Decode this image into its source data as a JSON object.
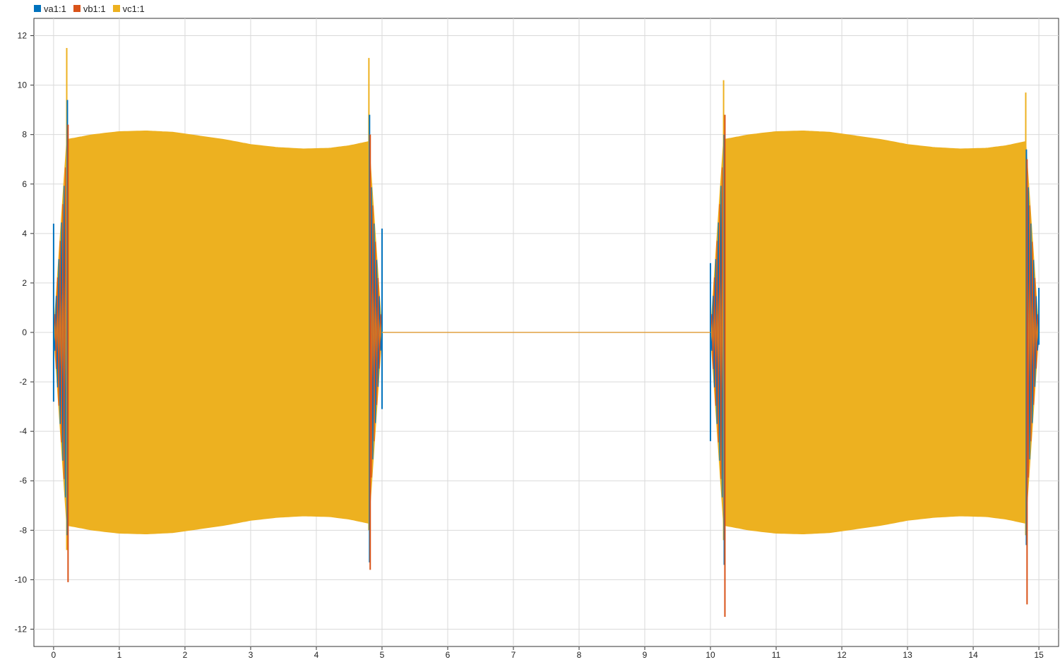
{
  "chart_data": {
    "type": "line",
    "title": "",
    "xlabel": "",
    "ylabel": "",
    "xlim": [
      -0.3,
      15.3
    ],
    "ylim": [
      -12.7,
      12.7
    ],
    "xticks": [
      0,
      1,
      2,
      3,
      4,
      5,
      6,
      7,
      8,
      9,
      10,
      11,
      12,
      13,
      14,
      15
    ],
    "yticks": [
      12,
      10,
      8,
      6,
      4,
      2,
      0,
      -2,
      -4,
      -6,
      -8,
      -10,
      -12
    ],
    "grid": true,
    "legend_position": "top-left",
    "series": [
      {
        "name": "va1:1",
        "color": "#0072BD"
      },
      {
        "name": "vb1:1",
        "color": "#D95319"
      },
      {
        "name": "vc1:1",
        "color": "#EDB120"
      }
    ],
    "bursts": [
      {
        "start": 0.0,
        "end": 5.0,
        "steady_from": 0.2,
        "steady_to": 4.8,
        "envelope": [
          [
            0.2,
            7.8
          ],
          [
            0.6,
            8.0
          ],
          [
            1.0,
            8.12
          ],
          [
            1.4,
            8.15
          ],
          [
            1.8,
            8.1
          ],
          [
            2.2,
            7.95
          ],
          [
            2.6,
            7.8
          ],
          [
            3.0,
            7.6
          ],
          [
            3.4,
            7.48
          ],
          [
            3.8,
            7.42
          ],
          [
            4.2,
            7.45
          ],
          [
            4.5,
            7.55
          ],
          [
            4.8,
            7.72
          ]
        ],
        "spikes": [
          {
            "x": 0.0,
            "series": "va1:1",
            "max": 4.4,
            "min": -2.8
          },
          {
            "x": 0.2,
            "series": "vc1:1",
            "max": 11.5,
            "min": -8.8
          },
          {
            "x": 0.21,
            "series": "va1:1",
            "max": 9.4,
            "min": -8.2
          },
          {
            "x": 0.22,
            "series": "vb1:1",
            "max": 8.4,
            "min": -10.1
          },
          {
            "x": 4.8,
            "series": "vc1:1",
            "max": 11.1,
            "min": -8.0
          },
          {
            "x": 4.81,
            "series": "va1:1",
            "max": 8.8,
            "min": -9.3
          },
          {
            "x": 4.82,
            "series": "vb1:1",
            "max": 8.0,
            "min": -9.6
          },
          {
            "x": 5.0,
            "series": "va1:1",
            "max": 4.2,
            "min": -3.1
          }
        ]
      },
      {
        "start": 10.0,
        "end": 15.0,
        "steady_from": 10.2,
        "steady_to": 14.8,
        "envelope": [
          [
            10.2,
            7.8
          ],
          [
            10.6,
            8.0
          ],
          [
            11.0,
            8.12
          ],
          [
            11.4,
            8.15
          ],
          [
            11.8,
            8.1
          ],
          [
            12.2,
            7.95
          ],
          [
            12.6,
            7.8
          ],
          [
            13.0,
            7.6
          ],
          [
            13.4,
            7.48
          ],
          [
            13.8,
            7.42
          ],
          [
            14.2,
            7.45
          ],
          [
            14.5,
            7.55
          ],
          [
            14.8,
            7.72
          ]
        ],
        "spikes": [
          {
            "x": 10.0,
            "series": "va1:1",
            "max": 2.8,
            "min": -4.4
          },
          {
            "x": 10.2,
            "series": "vc1:1",
            "max": 10.2,
            "min": -8.4
          },
          {
            "x": 10.21,
            "series": "va1:1",
            "max": 8.0,
            "min": -9.4
          },
          {
            "x": 10.22,
            "series": "vb1:1",
            "max": 8.8,
            "min": -11.5
          },
          {
            "x": 14.8,
            "series": "vc1:1",
            "max": 9.7,
            "min": -8.2
          },
          {
            "x": 14.81,
            "series": "va1:1",
            "max": 7.4,
            "min": -8.6
          },
          {
            "x": 14.82,
            "series": "vb1:1",
            "max": 7.0,
            "min": -11.0
          },
          {
            "x": 15.0,
            "series": "va1:1",
            "max": 1.8,
            "min": -0.5
          }
        ]
      }
    ],
    "baseline_value": 0
  }
}
